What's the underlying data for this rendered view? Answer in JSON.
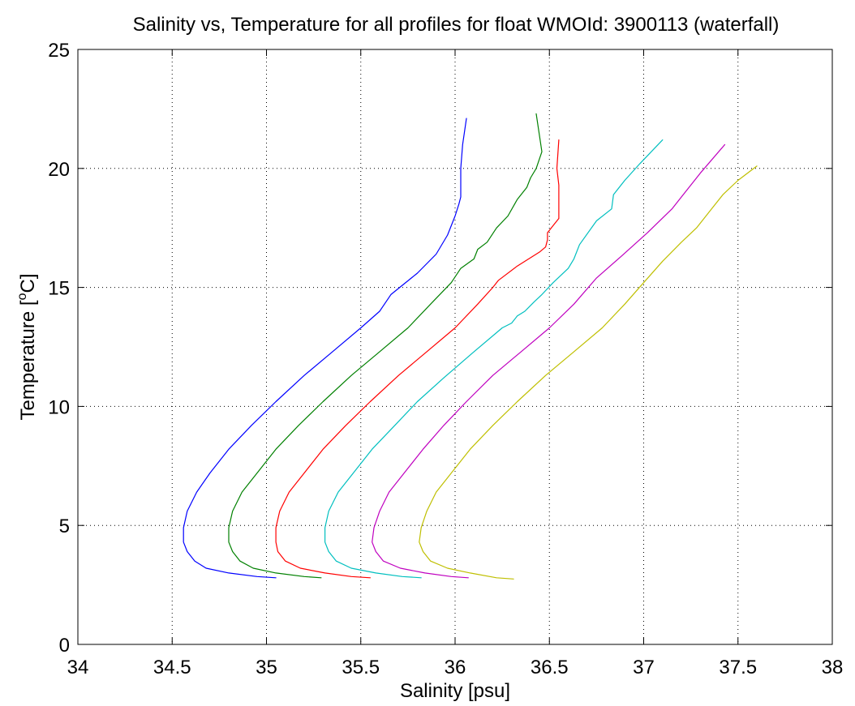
{
  "chart_data": {
    "type": "line",
    "title": "Salinity vs, Temperature for all profiles for float WMOId: 3900113 (waterfall)",
    "xlabel": "Salinity [psu]",
    "ylabel_main": "Temperature [",
    "ylabel_sup": "o",
    "ylabel_tail": "C]",
    "xlim": [
      34,
      38
    ],
    "ylim": [
      0,
      25
    ],
    "xticks": [
      34,
      34.5,
      35,
      35.5,
      36,
      36.5,
      37,
      37.5,
      38
    ],
    "xtick_labels": [
      "34",
      "34.5",
      "35",
      "35.5",
      "36",
      "36.5",
      "37",
      "37.5",
      "38"
    ],
    "yticks": [
      0,
      5,
      10,
      15,
      20,
      25
    ],
    "ytick_labels": [
      "0",
      "5",
      "10",
      "15",
      "20",
      "25"
    ],
    "grid": true,
    "series": [
      {
        "color": "#0000ff",
        "points": [
          [
            35.05,
            2.8
          ],
          [
            34.95,
            2.85
          ],
          [
            34.8,
            3.0
          ],
          [
            34.68,
            3.2
          ],
          [
            34.62,
            3.5
          ],
          [
            34.58,
            3.9
          ],
          [
            34.56,
            4.3
          ],
          [
            34.56,
            4.9
          ],
          [
            34.58,
            5.6
          ],
          [
            34.63,
            6.4
          ],
          [
            34.7,
            7.2
          ],
          [
            34.8,
            8.2
          ],
          [
            34.92,
            9.2
          ],
          [
            35.05,
            10.2
          ],
          [
            35.2,
            11.3
          ],
          [
            35.35,
            12.3
          ],
          [
            35.5,
            13.3
          ],
          [
            35.6,
            14.0
          ],
          [
            35.66,
            14.7
          ],
          [
            35.8,
            15.6
          ],
          [
            35.9,
            16.4
          ],
          [
            35.96,
            17.2
          ],
          [
            36.0,
            18.0
          ],
          [
            36.02,
            18.5
          ],
          [
            36.03,
            18.8
          ],
          [
            36.03,
            20.0
          ],
          [
            36.04,
            21.0
          ],
          [
            36.06,
            22.1
          ]
        ]
      },
      {
        "color": "#008000",
        "points": [
          [
            35.29,
            2.8
          ],
          [
            35.2,
            2.85
          ],
          [
            35.05,
            3.0
          ],
          [
            34.93,
            3.2
          ],
          [
            34.86,
            3.5
          ],
          [
            34.82,
            3.9
          ],
          [
            34.8,
            4.3
          ],
          [
            34.8,
            4.9
          ],
          [
            34.82,
            5.6
          ],
          [
            34.87,
            6.4
          ],
          [
            34.95,
            7.2
          ],
          [
            35.05,
            8.2
          ],
          [
            35.17,
            9.2
          ],
          [
            35.3,
            10.2
          ],
          [
            35.45,
            11.3
          ],
          [
            35.6,
            12.3
          ],
          [
            35.75,
            13.3
          ],
          [
            35.87,
            14.3
          ],
          [
            35.98,
            15.2
          ],
          [
            36.03,
            15.8
          ],
          [
            36.1,
            16.2
          ],
          [
            36.12,
            16.6
          ],
          [
            36.17,
            16.9
          ],
          [
            36.22,
            17.5
          ],
          [
            36.28,
            18.0
          ],
          [
            36.33,
            18.7
          ],
          [
            36.38,
            19.2
          ],
          [
            36.4,
            19.6
          ],
          [
            36.43,
            20.0
          ],
          [
            36.46,
            20.7
          ],
          [
            36.43,
            22.3
          ]
        ]
      },
      {
        "color": "#ff0000",
        "points": [
          [
            35.55,
            2.8
          ],
          [
            35.45,
            2.85
          ],
          [
            35.31,
            3.0
          ],
          [
            35.18,
            3.2
          ],
          [
            35.1,
            3.5
          ],
          [
            35.06,
            3.9
          ],
          [
            35.05,
            4.3
          ],
          [
            35.05,
            4.9
          ],
          [
            35.07,
            5.6
          ],
          [
            35.12,
            6.4
          ],
          [
            35.2,
            7.2
          ],
          [
            35.3,
            8.2
          ],
          [
            35.42,
            9.2
          ],
          [
            35.55,
            10.2
          ],
          [
            35.7,
            11.3
          ],
          [
            35.85,
            12.3
          ],
          [
            36.0,
            13.3
          ],
          [
            36.12,
            14.3
          ],
          [
            36.2,
            15.0
          ],
          [
            36.23,
            15.3
          ],
          [
            36.33,
            15.9
          ],
          [
            36.45,
            16.5
          ],
          [
            36.48,
            16.7
          ],
          [
            36.49,
            17.0
          ],
          [
            36.49,
            17.3
          ],
          [
            36.52,
            17.6
          ],
          [
            36.55,
            17.9
          ],
          [
            36.55,
            18.5
          ],
          [
            36.55,
            19.3
          ],
          [
            36.54,
            20.0
          ],
          [
            36.55,
            21.2
          ]
        ]
      },
      {
        "color": "#00bfbf",
        "points": [
          [
            35.82,
            2.8
          ],
          [
            35.72,
            2.85
          ],
          [
            35.58,
            3.0
          ],
          [
            35.45,
            3.2
          ],
          [
            35.37,
            3.5
          ],
          [
            35.33,
            3.9
          ],
          [
            35.31,
            4.3
          ],
          [
            35.31,
            4.9
          ],
          [
            35.33,
            5.6
          ],
          [
            35.38,
            6.4
          ],
          [
            35.46,
            7.2
          ],
          [
            35.56,
            8.2
          ],
          [
            35.68,
            9.2
          ],
          [
            35.8,
            10.2
          ],
          [
            35.94,
            11.2
          ],
          [
            36.1,
            12.3
          ],
          [
            36.25,
            13.3
          ],
          [
            36.3,
            13.5
          ],
          [
            36.33,
            13.8
          ],
          [
            36.37,
            14.0
          ],
          [
            36.42,
            14.4
          ],
          [
            36.46,
            14.7
          ],
          [
            36.52,
            15.2
          ],
          [
            36.6,
            15.8
          ],
          [
            36.63,
            16.2
          ],
          [
            36.66,
            16.8
          ],
          [
            36.75,
            17.8
          ],
          [
            36.83,
            18.3
          ],
          [
            36.84,
            18.9
          ],
          [
            36.9,
            19.5
          ],
          [
            36.98,
            20.2
          ],
          [
            37.1,
            21.2
          ]
        ]
      },
      {
        "color": "#bf00bf",
        "points": [
          [
            36.07,
            2.8
          ],
          [
            35.98,
            2.85
          ],
          [
            35.84,
            3.0
          ],
          [
            35.71,
            3.2
          ],
          [
            35.62,
            3.5
          ],
          [
            35.58,
            3.9
          ],
          [
            35.56,
            4.3
          ],
          [
            35.57,
            4.9
          ],
          [
            35.6,
            5.6
          ],
          [
            35.65,
            6.4
          ],
          [
            35.73,
            7.2
          ],
          [
            35.83,
            8.2
          ],
          [
            35.94,
            9.2
          ],
          [
            36.06,
            10.2
          ],
          [
            36.2,
            11.3
          ],
          [
            36.35,
            12.3
          ],
          [
            36.5,
            13.3
          ],
          [
            36.63,
            14.3
          ],
          [
            36.75,
            15.4
          ],
          [
            36.88,
            16.3
          ],
          [
            37.02,
            17.3
          ],
          [
            37.15,
            18.3
          ],
          [
            37.2,
            18.8
          ],
          [
            37.3,
            19.8
          ],
          [
            37.43,
            21.0
          ]
        ]
      },
      {
        "color": "#bfbf00",
        "points": [
          [
            36.31,
            2.75
          ],
          [
            36.22,
            2.8
          ],
          [
            36.08,
            3.0
          ],
          [
            35.96,
            3.2
          ],
          [
            35.87,
            3.5
          ],
          [
            35.83,
            3.9
          ],
          [
            35.81,
            4.3
          ],
          [
            35.82,
            4.9
          ],
          [
            35.85,
            5.6
          ],
          [
            35.9,
            6.4
          ],
          [
            35.98,
            7.2
          ],
          [
            36.08,
            8.2
          ],
          [
            36.2,
            9.2
          ],
          [
            36.33,
            10.2
          ],
          [
            36.48,
            11.3
          ],
          [
            36.63,
            12.3
          ],
          [
            36.78,
            13.3
          ],
          [
            36.9,
            14.3
          ],
          [
            37.0,
            15.2
          ],
          [
            37.1,
            16.1
          ],
          [
            37.2,
            16.9
          ],
          [
            37.28,
            17.5
          ],
          [
            37.35,
            18.2
          ],
          [
            37.42,
            18.9
          ],
          [
            37.5,
            19.5
          ],
          [
            37.6,
            20.1
          ]
        ]
      }
    ]
  }
}
